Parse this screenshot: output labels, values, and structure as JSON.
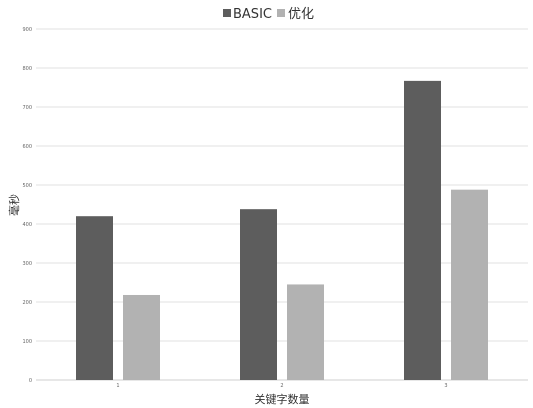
{
  "chart_data": {
    "type": "bar",
    "title": "",
    "xlabel": "关键字数量",
    "ylabel": "毫秒",
    "categories": [
      "1",
      "2",
      "3"
    ],
    "series": [
      {
        "name": "BASIC",
        "values": [
          420,
          438,
          767
        ],
        "color": "#5d5d5d"
      },
      {
        "name": "优化",
        "values": [
          218,
          245,
          488
        ],
        "color": "#b2b2b2"
      }
    ],
    "ylim": [
      0,
      900
    ],
    "yticks": [
      "0",
      "100",
      "200",
      "300",
      "400",
      "500",
      "600",
      "700",
      "800",
      "900"
    ],
    "grid": true,
    "legend_position": "top"
  }
}
